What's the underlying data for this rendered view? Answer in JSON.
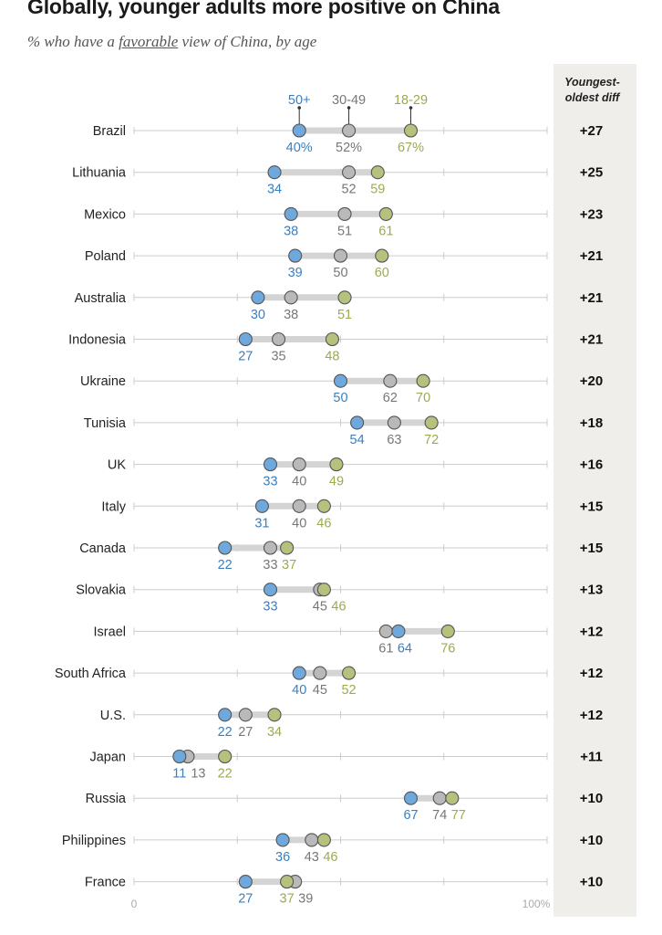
{
  "title": "Globally, younger adults more positive on China",
  "subtitle": {
    "pre": "% who have a ",
    "emph": "favorable",
    "post": " view of China, by age"
  },
  "colors": {
    "age_50plus": "#6fa8dc",
    "age_30_49": "#b9b9b9",
    "age_18_29": "#b5c27d",
    "label_50plus": "#3a7fc0",
    "label_30_49": "#777777",
    "label_18_29": "#9aab52",
    "diff_panel": "#efeeeb",
    "grid": "#cccccc"
  },
  "chart_data": {
    "type": "dot",
    "title": "Globally, younger adults more positive on China",
    "subtitle": "% who have a favorable view of China, by age",
    "xlim": [
      0,
      100
    ],
    "x_tick_labels": [
      "0",
      "100%"
    ],
    "series_names": [
      "50+",
      "30-49",
      "18-29"
    ],
    "diff_header": "Youngest-oldest diff",
    "diff_header_lines": [
      "Youngest-",
      "oldest diff"
    ],
    "categories": [
      "Brazil",
      "Lithuania",
      "Mexico",
      "Poland",
      "Australia",
      "Indonesia",
      "Ukraine",
      "Tunisia",
      "UK",
      "Italy",
      "Canada",
      "Slovakia",
      "Israel",
      "South Africa",
      "U.S.",
      "Japan",
      "Russia",
      "Philippines",
      "France"
    ],
    "series": [
      {
        "name": "50+",
        "values": [
          40,
          34,
          38,
          39,
          30,
          27,
          50,
          54,
          33,
          31,
          22,
          33,
          64,
          40,
          22,
          11,
          67,
          36,
          27
        ]
      },
      {
        "name": "30-49",
        "values": [
          52,
          52,
          51,
          50,
          38,
          35,
          62,
          63,
          40,
          40,
          33,
          45,
          61,
          45,
          27,
          13,
          74,
          43,
          39
        ]
      },
      {
        "name": "18-29",
        "values": [
          67,
          59,
          61,
          60,
          51,
          48,
          70,
          72,
          49,
          46,
          37,
          46,
          76,
          52,
          34,
          22,
          77,
          46,
          37
        ]
      }
    ],
    "first_row_value_labels": [
      "40%",
      "52%",
      "67%"
    ],
    "diffs": [
      "+27",
      "+25",
      "+23",
      "+21",
      "+21",
      "+21",
      "+20",
      "+18",
      "+16",
      "+15",
      "+15",
      "+13",
      "+12",
      "+12",
      "+12",
      "+11",
      "+10",
      "+10",
      "+10"
    ]
  }
}
